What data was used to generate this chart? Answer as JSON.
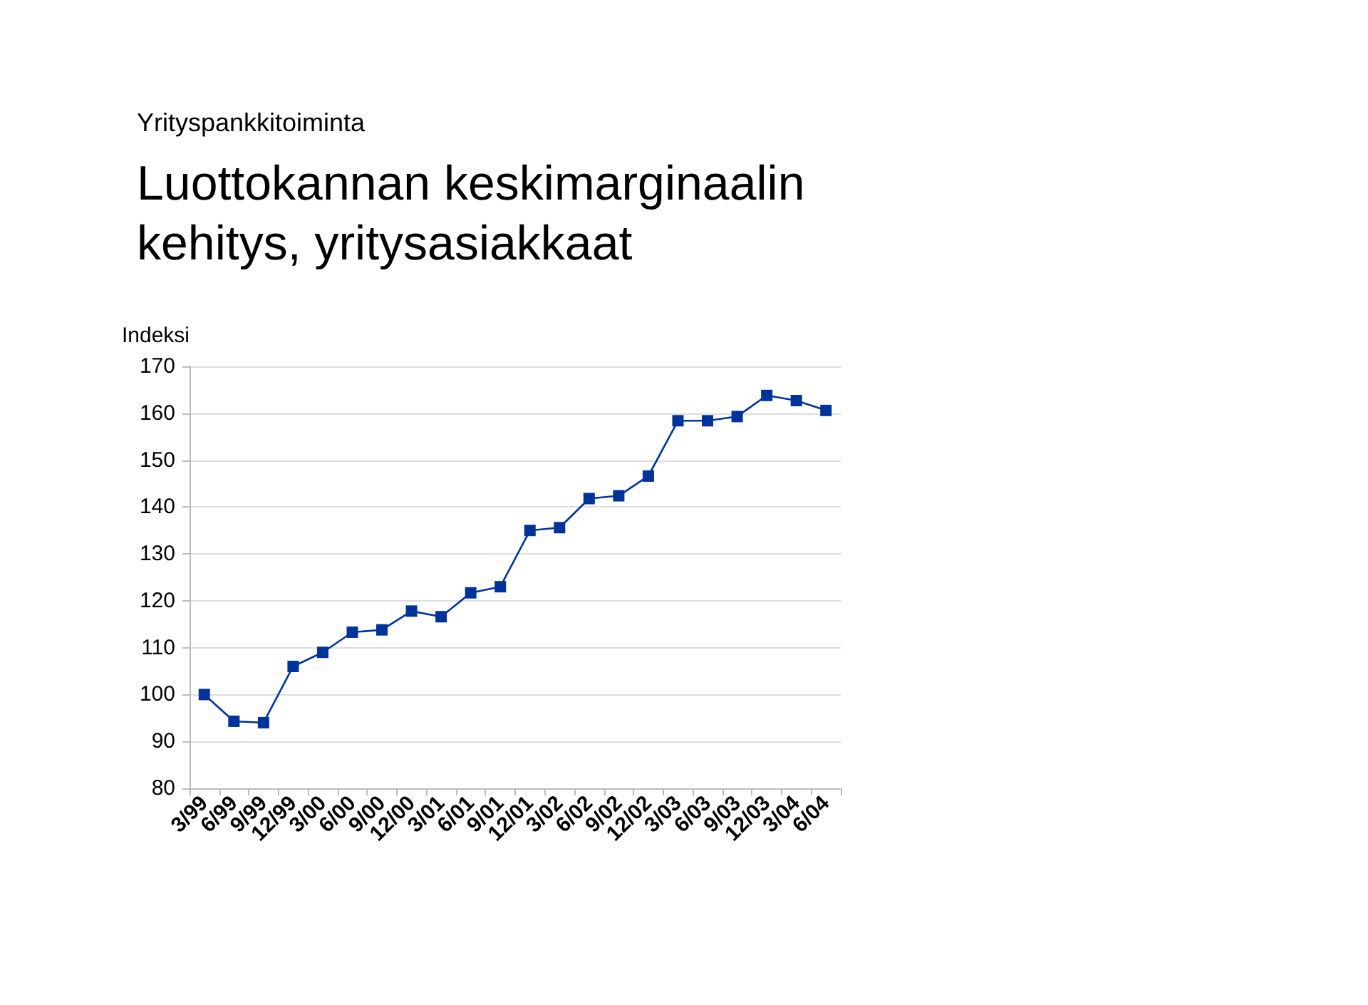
{
  "chart_data": {
    "type": "line",
    "subtitle": "Yrityspankkitoiminta",
    "title": "Luottokannan keskimarginaalin\nkehitys, yritysasiakkaat",
    "ylabel": "Indeksi",
    "categories": [
      "3/99",
      "6/99",
      "9/99",
      "12/99",
      "3/00",
      "6/00",
      "9/00",
      "12/00",
      "3/01",
      "6/01",
      "9/01",
      "12/01",
      "3/02",
      "6/02",
      "9/02",
      "12/02",
      "3/03",
      "6/03",
      "9/03",
      "12/03",
      "3/04",
      "6/04"
    ],
    "series": [
      {
        "color": "#003399",
        "values": [
          100,
          94.3,
          94,
          106,
          109,
          113.3,
          113.8,
          117.8,
          116.6,
          121.7,
          123,
          135,
          135.6,
          141.8,
          142.4,
          146.6,
          158.4,
          158.4,
          159.3,
          163.8,
          162.7,
          160.6
        ]
      }
    ],
    "ylim": [
      80,
      170
    ],
    "yticks": [
      80,
      90,
      100,
      110,
      120,
      130,
      140,
      150,
      160,
      170
    ],
    "grid": "y",
    "marker": "square",
    "line_style": "solid"
  }
}
